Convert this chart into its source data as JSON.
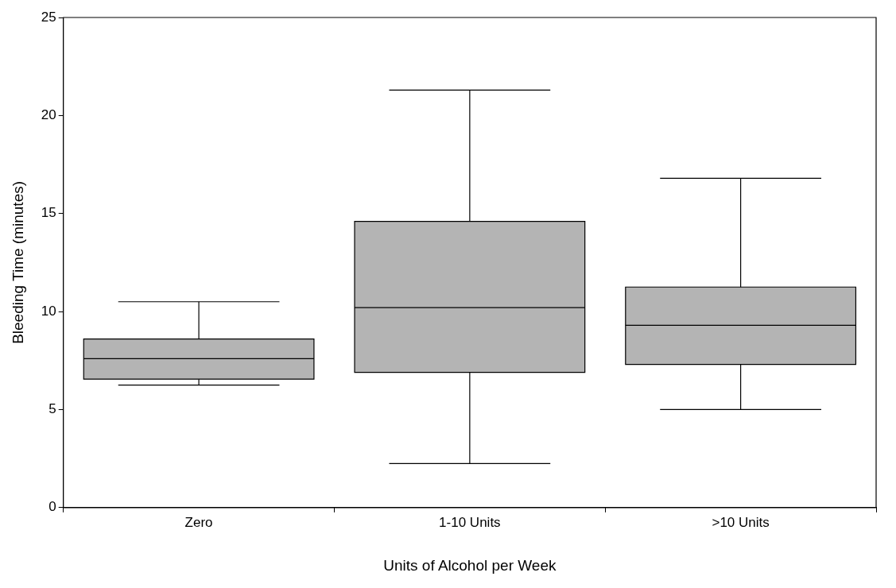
{
  "chart_data": {
    "type": "box",
    "xlabel": "Units of Alcohol per Week",
    "ylabel": "Bleeding Time (minutes)",
    "categories": [
      "Zero",
      "1-10 Units",
      ">10 Units"
    ],
    "boxes": [
      {
        "low": 6.25,
        "q1": 6.55,
        "median": 7.6,
        "q3": 8.6,
        "high": 10.5
      },
      {
        "low": 2.25,
        "q1": 6.9,
        "median": 10.2,
        "q3": 14.6,
        "high": 21.3
      },
      {
        "low": 5.0,
        "q1": 7.3,
        "median": 9.3,
        "q3": 11.25,
        "high": 16.8
      }
    ],
    "color": "#b4b4b4",
    "ylim": [
      0,
      25
    ],
    "yticks": [
      0,
      5,
      10,
      15,
      20,
      25
    ],
    "grid": false,
    "legend": false
  }
}
